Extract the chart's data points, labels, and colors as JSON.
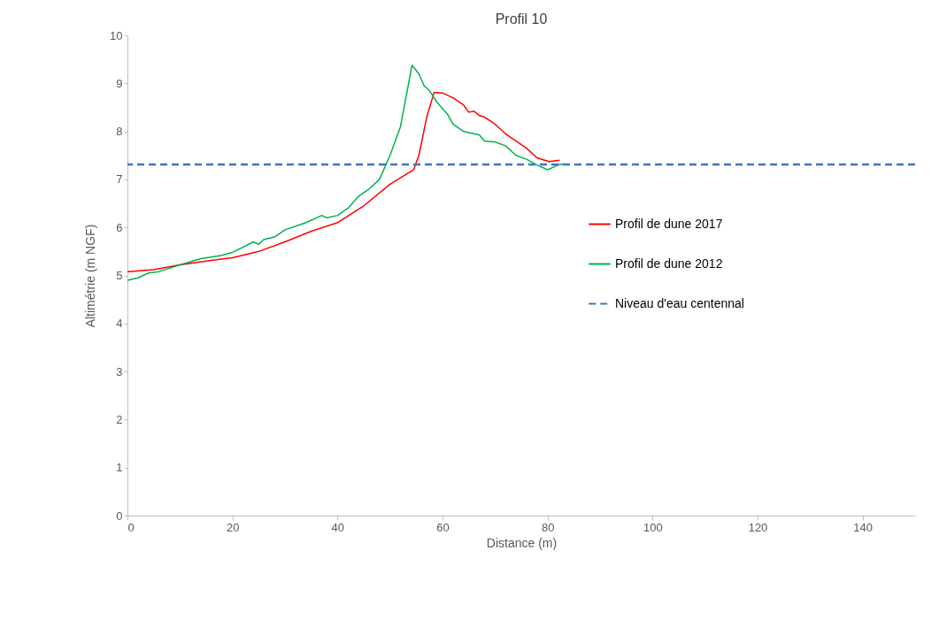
{
  "chart_data": {
    "type": "line",
    "title": "Profil 10",
    "xlabel": "Distance (m)",
    "ylabel": "Altimétrie (m NGF)",
    "xlim": [
      0,
      150
    ],
    "xticks": [
      0,
      20,
      40,
      60,
      80,
      100,
      120,
      140
    ],
    "ylim": [
      0,
      10
    ],
    "yticks": [
      0,
      1,
      2,
      3,
      4,
      5,
      6,
      7,
      8,
      9,
      10
    ],
    "grid": false,
    "legend": "right",
    "marker": "none",
    "line_style": "solid",
    "series": [
      {
        "name": "Profil de dune 2017",
        "color": "#ff0000",
        "x": [
          0,
          5,
          10,
          15,
          20,
          25,
          30,
          35,
          40,
          45,
          50,
          53,
          54.5,
          55.5,
          57,
          58.4,
          60,
          62,
          64,
          65,
          66,
          67,
          68,
          70,
          72,
          74,
          76,
          78,
          80.3,
          82.3
        ],
        "values": [
          5.08,
          5.12,
          5.22,
          5.3,
          5.37,
          5.5,
          5.7,
          5.92,
          6.1,
          6.45,
          6.9,
          7.1,
          7.2,
          7.5,
          8.3,
          8.81,
          8.8,
          8.7,
          8.55,
          8.4,
          8.42,
          8.33,
          8.3,
          8.15,
          7.95,
          7.8,
          7.65,
          7.45,
          7.37,
          7.4
        ]
      },
      {
        "name": "Profil de dune 2012",
        "color": "#00b050",
        "x": [
          0,
          2,
          4,
          6,
          10,
          14,
          18,
          20,
          24,
          25,
          26,
          28,
          30,
          34,
          36,
          37,
          38,
          40,
          42,
          44,
          46,
          48,
          50,
          52,
          54.2,
          55.5,
          56.5,
          57.5,
          59,
          61,
          62,
          64,
          66,
          67,
          68,
          70,
          72,
          74,
          76,
          78,
          80,
          81,
          82,
          83
        ],
        "values": [
          4.9,
          4.95,
          5.05,
          5.08,
          5.22,
          5.35,
          5.42,
          5.48,
          5.7,
          5.65,
          5.75,
          5.8,
          5.95,
          6.1,
          6.2,
          6.25,
          6.2,
          6.25,
          6.4,
          6.65,
          6.8,
          7.0,
          7.5,
          8.1,
          9.38,
          9.2,
          8.95,
          8.85,
          8.6,
          8.35,
          8.15,
          8.0,
          7.95,
          7.93,
          7.8,
          7.78,
          7.7,
          7.5,
          7.42,
          7.3,
          7.2,
          7.25,
          7.3,
          7.32
        ]
      }
    ],
    "ref_lines": [
      {
        "axis": "y",
        "value": 7.31,
        "label": "Niveau d'eau centennal",
        "color": "#4472c4",
        "line_style": "dashed"
      }
    ]
  }
}
